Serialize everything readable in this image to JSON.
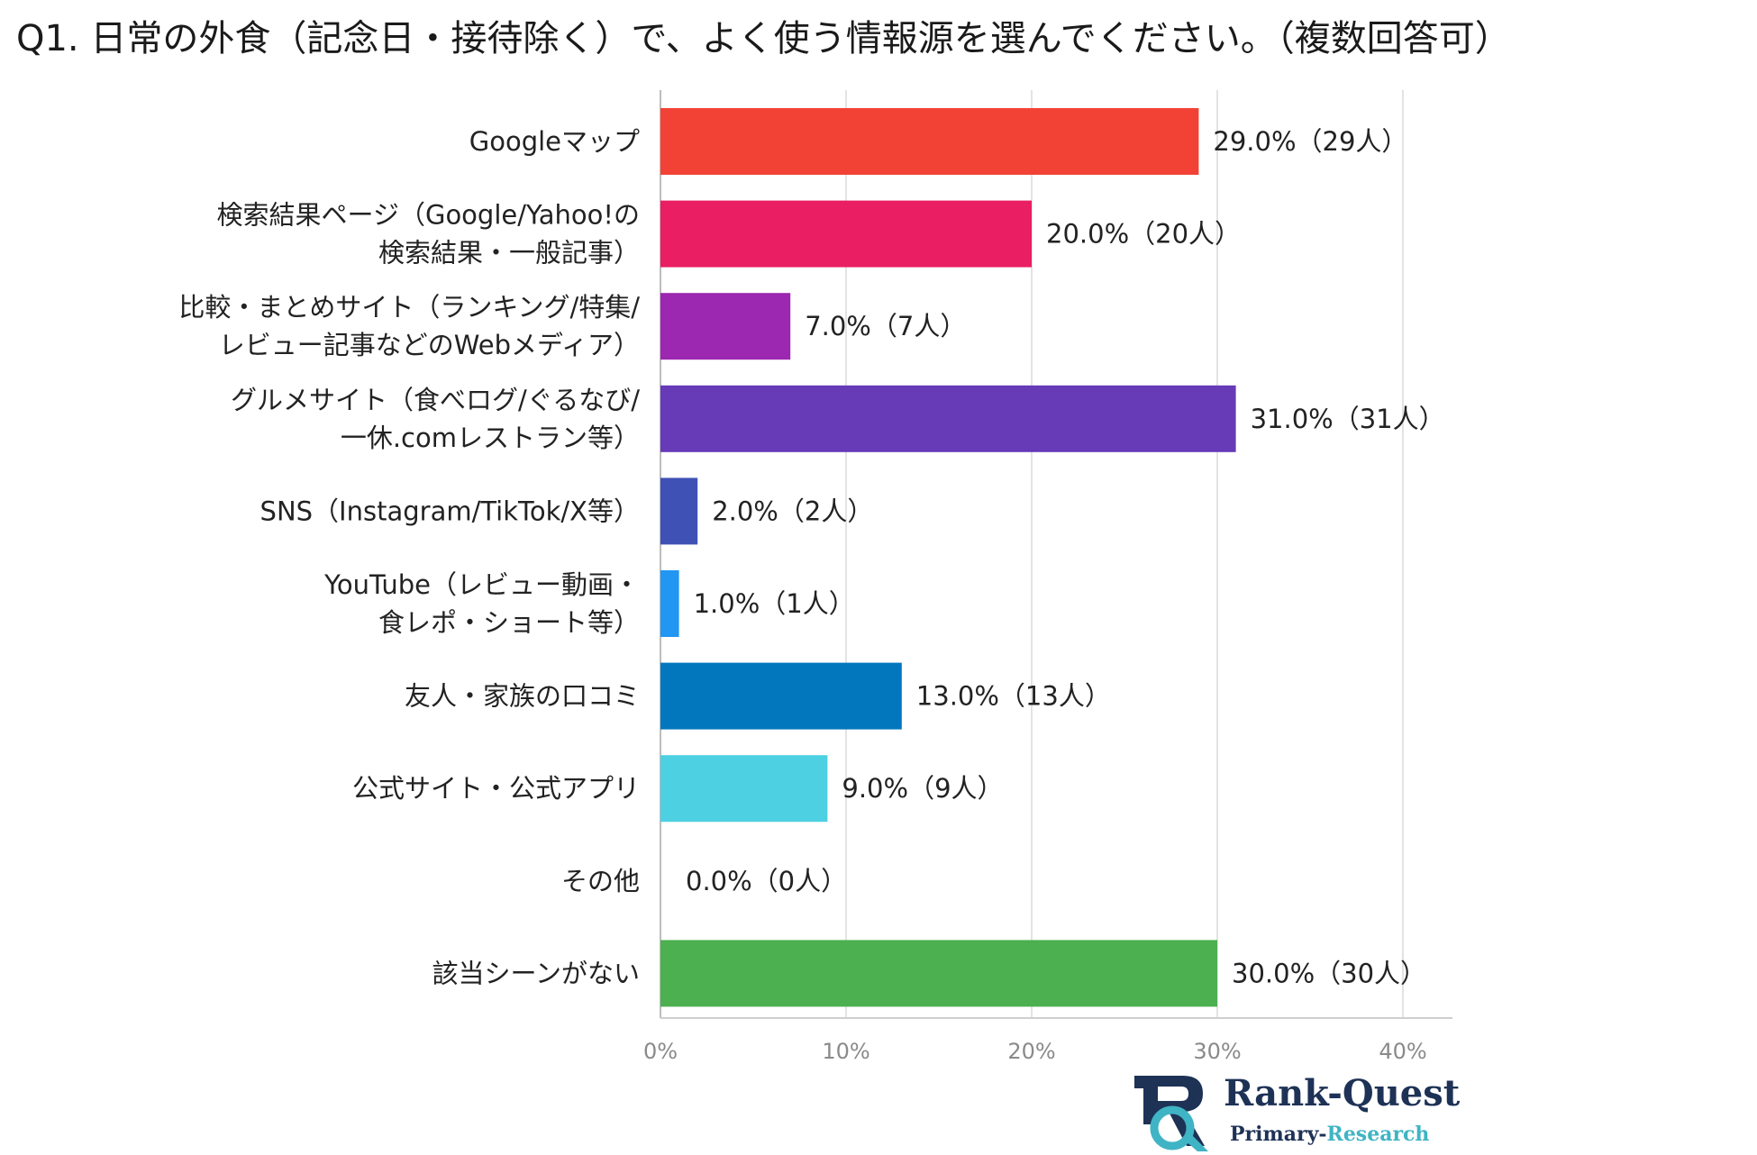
{
  "title": "Q1. 日常の外食（記念日・接待除く）で、よく使う情報源を選んでください。（複数回答可）",
  "chart_data": {
    "type": "bar",
    "orientation": "horizontal",
    "categories": [
      [
        "Googleマップ"
      ],
      [
        "検索結果ページ（Google/Yahoo!の",
        "検索結果・一般記事）"
      ],
      [
        "比較・まとめサイト（ランキング/特集/",
        "レビュー記事などのWebメディア）"
      ],
      [
        "グルメサイト（食べログ/ぐるなび/",
        "一休.comレストラン等）"
      ],
      [
        "SNS（Instagram/TikTok/X等）"
      ],
      [
        "YouTube（レビュー動画・",
        "食レポ・ショート等）"
      ],
      [
        "友人・家族の口コミ"
      ],
      [
        "公式サイト・公式アプリ"
      ],
      [
        "その他"
      ],
      [
        "該当シーンがない"
      ]
    ],
    "values": [
      29,
      20,
      7,
      31,
      2,
      1,
      13,
      9,
      0,
      30
    ],
    "value_labels": [
      "29.0%（29人）",
      "20.0%（20人）",
      "7.0%（7人）",
      "31.0%（31人）",
      "2.0%（2人）",
      "1.0%（1人）",
      "13.0%（13人）",
      "9.0%（9人）",
      "0.0%（0人）",
      "30.0%（30人）"
    ],
    "colors": [
      "#f24236",
      "#e91e63",
      "#9c27b0",
      "#673ab7",
      "#3f51b5",
      "#2196f3",
      "#0277bd",
      "#4dd0e1",
      "#9e9e9e",
      "#4caf50"
    ],
    "xlim": [
      0,
      40
    ],
    "ticks": [
      0,
      10,
      20,
      30,
      40
    ],
    "tick_labels": [
      "0%",
      "10%",
      "20%",
      "30%",
      "40%"
    ],
    "grid": true,
    "xlabel": "",
    "ylabel": ""
  },
  "logo": {
    "name": "Rank-Quest",
    "sub_primary": "Primary-",
    "sub_research": "Research",
    "icon": "rq-monogram-icon",
    "navy": "#1e3256",
    "teal": "#3fb4c4"
  }
}
